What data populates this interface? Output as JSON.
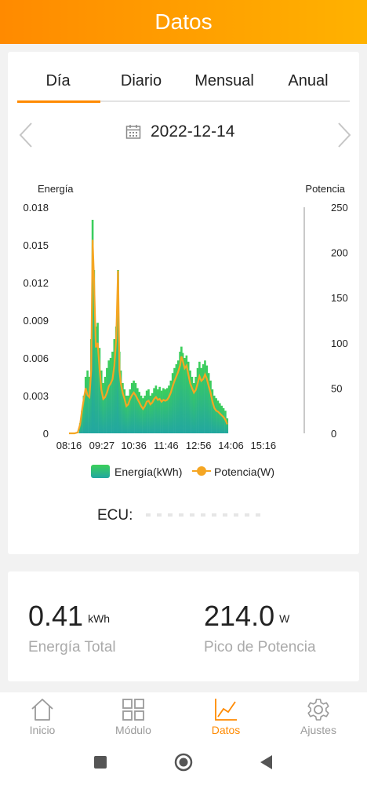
{
  "header": {
    "title": "Datos"
  },
  "tabs": [
    {
      "label": "Día",
      "active": true
    },
    {
      "label": "Diario",
      "active": false
    },
    {
      "label": "Mensual",
      "active": false
    },
    {
      "label": "Anual",
      "active": false
    }
  ],
  "date_nav": {
    "date": "2022-12-14",
    "icon": "calendar-icon"
  },
  "colors": {
    "accent": "#ff8a00",
    "energy_bar_top": "#3ccf5a",
    "energy_bar_bottom": "#22a7a0",
    "power_line": "#f5a623"
  },
  "chart_data": {
    "type": "bar",
    "left_axis_title": "Energía",
    "right_axis_title": "Potencia",
    "x_tick_labels": [
      "08:16",
      "09:27",
      "10:36",
      "11:46",
      "12:56",
      "14:06",
      "15:16"
    ],
    "x_range_minutes": [
      496,
      1035
    ],
    "left_ticks": [
      "0",
      "0.003",
      "0.006",
      "0.009",
      "0.012",
      "0.015",
      "0.018"
    ],
    "right_ticks": [
      "0",
      "50",
      "100",
      "150",
      "200",
      "250"
    ],
    "ylim_left": [
      0,
      0.018
    ],
    "ylim_right": [
      0,
      250
    ],
    "grid": false,
    "legend_position": "bottom",
    "series": [
      {
        "name": "Energía(kWh)",
        "kind": "bar"
      },
      {
        "name": "Potencia(W)",
        "kind": "line"
      }
    ],
    "points": [
      [
        496,
        0,
        0
      ],
      [
        508,
        0,
        0
      ],
      [
        515,
        0.0001,
        1
      ],
      [
        520,
        0.0008,
        10
      ],
      [
        524,
        0.0018,
        25
      ],
      [
        528,
        0.003,
        38
      ],
      [
        532,
        0.0045,
        50
      ],
      [
        536,
        0.005,
        42
      ],
      [
        540,
        0.0045,
        40
      ],
      [
        544,
        0.0075,
        70
      ],
      [
        547,
        0.017,
        214
      ],
      [
        550,
        0.013,
        170
      ],
      [
        554,
        0.0085,
        95
      ],
      [
        558,
        0.0088,
        100
      ],
      [
        562,
        0.0068,
        72
      ],
      [
        566,
        0.005,
        48
      ],
      [
        570,
        0.004,
        38
      ],
      [
        574,
        0.0045,
        40
      ],
      [
        578,
        0.0052,
        45
      ],
      [
        582,
        0.0058,
        52
      ],
      [
        586,
        0.006,
        55
      ],
      [
        590,
        0.0065,
        60
      ],
      [
        594,
        0.0075,
        75
      ],
      [
        598,
        0.0085,
        105
      ],
      [
        602,
        0.013,
        180
      ],
      [
        605,
        0.0065,
        70
      ],
      [
        608,
        0.005,
        55
      ],
      [
        612,
        0.004,
        45
      ],
      [
        616,
        0.0035,
        38
      ],
      [
        620,
        0.003,
        30
      ],
      [
        624,
        0.003,
        32
      ],
      [
        628,
        0.0035,
        38
      ],
      [
        632,
        0.004,
        42
      ],
      [
        636,
        0.0042,
        45
      ],
      [
        640,
        0.004,
        42
      ],
      [
        644,
        0.0036,
        38
      ],
      [
        648,
        0.0033,
        34
      ],
      [
        652,
        0.003,
        30
      ],
      [
        656,
        0.0028,
        27
      ],
      [
        660,
        0.003,
        30
      ],
      [
        664,
        0.0034,
        35
      ],
      [
        668,
        0.0035,
        36
      ],
      [
        672,
        0.003,
        32
      ],
      [
        676,
        0.0032,
        34
      ],
      [
        680,
        0.0036,
        38
      ],
      [
        684,
        0.0038,
        40
      ],
      [
        688,
        0.0035,
        37
      ],
      [
        692,
        0.0037,
        38
      ],
      [
        696,
        0.0034,
        35
      ],
      [
        700,
        0.0036,
        37
      ],
      [
        704,
        0.0035,
        36
      ],
      [
        708,
        0.0036,
        37
      ],
      [
        712,
        0.0038,
        40
      ],
      [
        716,
        0.0042,
        45
      ],
      [
        720,
        0.0048,
        52
      ],
      [
        724,
        0.0052,
        58
      ],
      [
        728,
        0.0055,
        63
      ],
      [
        732,
        0.0058,
        68
      ],
      [
        736,
        0.0065,
        75
      ],
      [
        739,
        0.0069,
        85
      ],
      [
        742,
        0.0064,
        80
      ],
      [
        746,
        0.006,
        72
      ],
      [
        750,
        0.0062,
        75
      ],
      [
        754,
        0.0057,
        65
      ],
      [
        758,
        0.005,
        55
      ],
      [
        762,
        0.0045,
        50
      ],
      [
        766,
        0.004,
        45
      ],
      [
        770,
        0.0045,
        48
      ],
      [
        774,
        0.0052,
        55
      ],
      [
        778,
        0.0057,
        63
      ],
      [
        782,
        0.0052,
        58
      ],
      [
        786,
        0.0055,
        60
      ],
      [
        790,
        0.0058,
        65
      ],
      [
        794,
        0.0054,
        60
      ],
      [
        798,
        0.0048,
        52
      ],
      [
        802,
        0.0042,
        45
      ],
      [
        806,
        0.0035,
        35
      ],
      [
        810,
        0.003,
        28
      ],
      [
        814,
        0.0028,
        25
      ],
      [
        818,
        0.0026,
        24
      ],
      [
        822,
        0.0024,
        22
      ],
      [
        826,
        0.0022,
        20
      ],
      [
        830,
        0.002,
        18
      ],
      [
        834,
        0.0018,
        15
      ],
      [
        838,
        0.0012,
        10
      ]
    ]
  },
  "legend": {
    "energy_label": "Energía(kWh)",
    "power_label": "Potencia(W)"
  },
  "ecu": {
    "label": "ECU:"
  },
  "stats": {
    "energy_value": "0.41",
    "energy_unit": "kWh",
    "energy_label": "Energía Total",
    "power_value": "214.0",
    "power_unit": "W",
    "power_label": "Pico de Potencia"
  },
  "bottom_nav": [
    {
      "label": "Inicio",
      "icon": "home-icon",
      "active": false
    },
    {
      "label": "Módulo",
      "icon": "grid-icon",
      "active": false
    },
    {
      "label": "Datos",
      "icon": "chart-line-icon",
      "active": true
    },
    {
      "label": "Ajustes",
      "icon": "gear-icon",
      "active": false
    }
  ]
}
